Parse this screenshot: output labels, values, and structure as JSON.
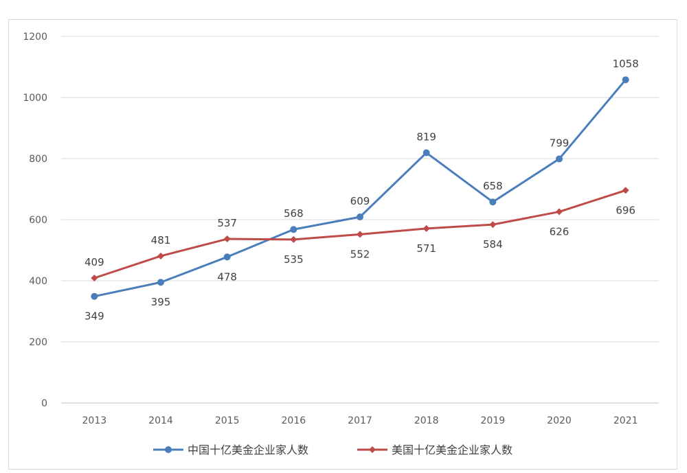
{
  "chart_data": {
    "type": "line",
    "x": [
      "2013",
      "2014",
      "2015",
      "2016",
      "2017",
      "2018",
      "2019",
      "2020",
      "2021"
    ],
    "ylim": [
      0,
      1200
    ],
    "yticks": [
      0,
      200,
      400,
      600,
      800,
      1000,
      1200
    ],
    "grid": true,
    "legend_position": "bottom",
    "title": "",
    "xlabel": "",
    "ylabel": "",
    "series": [
      {
        "name": "中国十亿美金企业家人数",
        "color": "#4a7ebb",
        "marker": "circle",
        "values": [
          349,
          395,
          478,
          568,
          609,
          819,
          658,
          799,
          1058
        ],
        "labels": [
          "349",
          "395",
          "478",
          "568",
          "609",
          "819",
          "658",
          "799",
          "1058"
        ],
        "label_side": [
          "below",
          "below",
          "below",
          "above",
          "above",
          "above",
          "above",
          "above",
          "above"
        ]
      },
      {
        "name": "美国十亿美金企业家人数",
        "color": "#be4b48",
        "marker": "diamond",
        "values": [
          409,
          481,
          537,
          535,
          552,
          571,
          584,
          626,
          696
        ],
        "labels": [
          "409",
          "481",
          "537",
          "535",
          "552",
          "571",
          "584",
          "626",
          "696"
        ],
        "label_side": [
          "above",
          "above",
          "above",
          "below",
          "below",
          "below",
          "below",
          "below",
          "below"
        ]
      }
    ]
  }
}
